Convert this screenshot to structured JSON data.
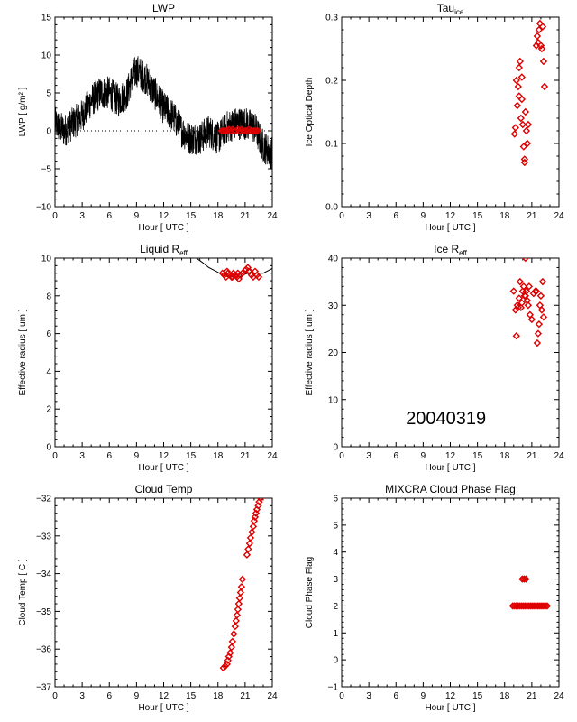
{
  "colors": {
    "marker": "#dd0000",
    "line": "#000000",
    "axis": "#000000"
  },
  "chart_data": [
    {
      "id": "lwp",
      "type": "line",
      "title": "LWP",
      "xlabel": "Hour [ UTC ]",
      "ylabel": "LWP [ g/m² ]",
      "xlim": [
        0,
        24
      ],
      "ylim": [
        -10,
        15
      ],
      "xticks": [
        0,
        3,
        6,
        9,
        12,
        15,
        18,
        21,
        24
      ],
      "yticks": [
        -10,
        -5,
        0,
        5,
        10,
        15
      ],
      "zero_line_dotted": true,
      "series": [
        {
          "kind": "noisy-line",
          "anchors": [
            [
              0,
              1
            ],
            [
              1,
              0
            ],
            [
              2,
              1
            ],
            [
              3,
              2
            ],
            [
              4,
              4
            ],
            [
              5,
              5
            ],
            [
              6,
              5
            ],
            [
              7,
              4
            ],
            [
              8,
              5
            ],
            [
              8.5,
              7
            ],
            [
              9,
              8
            ],
            [
              10,
              7
            ],
            [
              11,
              5
            ],
            [
              12,
              3
            ],
            [
              13,
              2
            ],
            [
              14,
              0
            ],
            [
              15,
              -1
            ],
            [
              16,
              -1
            ],
            [
              17,
              0
            ],
            [
              18,
              -1
            ],
            [
              19,
              0.5
            ],
            [
              20,
              1
            ],
            [
              21,
              1
            ],
            [
              22,
              0.5
            ],
            [
              23,
              -2
            ],
            [
              24,
              -3
            ]
          ],
          "noise_amplitude": 2.2
        },
        {
          "kind": "markers",
          "x": [
            18.4,
            18.6,
            18.8,
            19.0,
            19.2,
            19.4,
            19.6,
            19.8,
            20.0,
            20.2,
            20.4,
            20.6,
            20.8,
            21.0,
            21.2,
            21.4,
            21.6,
            21.8,
            22.0,
            22.2,
            22.4
          ],
          "y": [
            0,
            0,
            0,
            0,
            0.2,
            0,
            0.2,
            0,
            0,
            0.2,
            0,
            0.2,
            0,
            0,
            0,
            0.2,
            0,
            0,
            0,
            0,
            0
          ]
        }
      ]
    },
    {
      "id": "tau-ice",
      "type": "scatter",
      "title": "Tau",
      "title_sub": "ice",
      "xlabel": "Hour [ UTC ]",
      "ylabel": "Ice Optical Depth",
      "xlim": [
        0,
        24
      ],
      "ylim": [
        0,
        0.3
      ],
      "xticks": [
        0,
        3,
        6,
        9,
        12,
        15,
        18,
        21,
        24
      ],
      "yticks": [
        0.0,
        0.1,
        0.2,
        0.3
      ],
      "ytick_labels": [
        "0.0",
        "0.1",
        "0.2",
        "0.3"
      ],
      "series": [
        {
          "kind": "markers",
          "x": [
            19.1,
            19.2,
            19.4,
            19.5,
            19.6,
            19.7,
            19.8,
            19.9,
            20.0,
            20.1,
            20.2,
            20.3,
            20.4,
            20.5,
            20.6,
            19.3,
            19.6,
            19.9,
            20.2,
            21.5,
            21.7,
            21.8,
            21.9,
            22.0,
            22.2,
            22.3,
            22.4,
            21.6,
            22.1
          ],
          "y": [
            0.115,
            0.125,
            0.16,
            0.19,
            0.22,
            0.23,
            0.14,
            0.17,
            0.13,
            0.095,
            0.07,
            0.15,
            0.12,
            0.1,
            0.13,
            0.2,
            0.175,
            0.205,
            0.075,
            0.255,
            0.26,
            0.28,
            0.29,
            0.255,
            0.285,
            0.23,
            0.19,
            0.27,
            0.25
          ]
        }
      ]
    },
    {
      "id": "liquid-reff",
      "type": "scatter",
      "title": "Liquid R",
      "title_sub": "eff",
      "xlabel": "Hour [ UTC ]",
      "ylabel": "Effective radius [ um ]",
      "xlim": [
        0,
        24
      ],
      "ylim": [
        0,
        10
      ],
      "xticks": [
        0,
        3,
        6,
        9,
        12,
        15,
        18,
        21,
        24
      ],
      "yticks": [
        0,
        2,
        4,
        6,
        8,
        10
      ],
      "series": [
        {
          "kind": "line",
          "x": [
            15.6,
            16.2,
            17.0,
            17.8,
            18.5,
            19.2,
            20.0,
            20.6,
            21.0,
            21.6,
            22.2,
            23.0,
            23.6,
            24.0
          ],
          "y": [
            10.0,
            9.8,
            9.5,
            9.3,
            9.1,
            9.0,
            9.0,
            9.05,
            9.15,
            9.25,
            9.2,
            9.2,
            9.35,
            9.45
          ]
        },
        {
          "kind": "markers",
          "x": [
            18.5,
            18.7,
            18.9,
            19.1,
            19.3,
            19.5,
            19.7,
            19.9,
            20.1,
            20.3,
            20.5,
            20.7,
            21.1,
            21.3,
            21.5,
            21.7,
            21.9,
            22.1,
            22.3,
            22.5,
            19.0,
            19.6,
            20.2,
            21.4
          ],
          "y": [
            9.2,
            9.1,
            9.0,
            9.2,
            9.1,
            9.0,
            9.2,
            9.1,
            9.0,
            8.9,
            9.1,
            9.2,
            9.4,
            9.5,
            9.3,
            9.1,
            9.0,
            9.3,
            9.1,
            9.0,
            9.3,
            9.0,
            9.2,
            9.3
          ]
        }
      ]
    },
    {
      "id": "ice-reff",
      "type": "scatter",
      "title": "Ice R",
      "title_sub": "eff",
      "xlabel": "Hour [ UTC ]",
      "ylabel": "Effective radius [ um ]",
      "xlim": [
        0,
        24
      ],
      "ylim": [
        0,
        40
      ],
      "xticks": [
        0,
        3,
        6,
        9,
        12,
        15,
        18,
        21,
        24
      ],
      "yticks": [
        0,
        10,
        20,
        30,
        40
      ],
      "annotation": "20040319",
      "series": [
        {
          "kind": "markers",
          "x": [
            19.0,
            19.2,
            19.3,
            19.4,
            19.6,
            19.7,
            19.8,
            19.9,
            20.0,
            20.1,
            20.2,
            20.3,
            20.4,
            20.5,
            20.6,
            20.7,
            20.8,
            21.0,
            21.2,
            21.4,
            21.5,
            21.6,
            21.7,
            21.8,
            21.9,
            22.0,
            22.1,
            22.2,
            22.3,
            19.5,
            20.3
          ],
          "y": [
            33,
            29,
            23.5,
            30,
            31.5,
            35,
            29.5,
            30.5,
            33,
            34,
            32,
            40,
            33,
            31,
            30,
            34,
            28,
            27,
            32.5,
            33,
            33,
            22,
            24,
            26,
            30,
            32,
            29,
            35,
            27.5,
            29.5,
            32
          ]
        }
      ]
    },
    {
      "id": "cloud-temp",
      "type": "scatter",
      "title": "Cloud Temp",
      "xlabel": "Hour [ UTC ]",
      "ylabel": "Cloud Temp [ C ]",
      "xlim": [
        0,
        24
      ],
      "ylim": [
        -37,
        -32
      ],
      "xticks": [
        0,
        3,
        6,
        9,
        12,
        15,
        18,
        21,
        24
      ],
      "yticks": [
        -37,
        -36,
        -35,
        -34,
        -33,
        -32
      ],
      "series": [
        {
          "kind": "markers",
          "x": [
            18.6,
            18.8,
            19.0,
            19.1,
            19.2,
            19.35,
            19.5,
            19.6,
            19.75,
            19.9,
            20.0,
            20.1,
            20.2,
            20.3,
            20.4,
            20.5,
            20.6,
            20.7,
            21.2,
            21.35,
            21.5,
            21.6,
            21.75,
            21.9,
            22.0,
            22.1,
            22.2,
            22.3,
            22.45,
            22.55,
            22.7
          ],
          "y": [
            -36.5,
            -36.45,
            -36.4,
            -36.3,
            -36.2,
            -36.1,
            -35.95,
            -35.8,
            -35.6,
            -35.4,
            -35.25,
            -35.1,
            -34.95,
            -34.8,
            -34.65,
            -34.5,
            -34.35,
            -34.15,
            -33.5,
            -33.35,
            -33.2,
            -33.05,
            -32.9,
            -32.75,
            -32.6,
            -32.5,
            -32.4,
            -32.3,
            -32.2,
            -32.1,
            -32.0
          ]
        }
      ]
    },
    {
      "id": "cloud-phase",
      "type": "scatter",
      "title": "MIXCRA Cloud Phase Flag",
      "xlabel": "Hour [ UTC ]",
      "ylabel": "Cloud Phase Flag",
      "xlim": [
        0,
        24
      ],
      "ylim": [
        -1,
        6
      ],
      "xticks": [
        0,
        3,
        6,
        9,
        12,
        15,
        18,
        21,
        24
      ],
      "yticks": [
        -1,
        0,
        1,
        2,
        3,
        4,
        5,
        6
      ],
      "series": [
        {
          "kind": "markers",
          "x": [
            18.9,
            19.1,
            19.3,
            19.5,
            19.7,
            19.9,
            20.1,
            20.3,
            20.5,
            20.7,
            20.9,
            21.1,
            21.3,
            21.5,
            21.7,
            21.9,
            22.1,
            22.3,
            22.5,
            22.7,
            19.95,
            20.15,
            20.35
          ],
          "y": [
            2,
            2,
            2,
            2,
            2,
            2,
            2,
            2,
            2,
            2,
            2,
            2,
            2,
            2,
            2,
            2,
            2,
            2,
            2,
            2,
            3,
            3,
            3
          ]
        }
      ]
    }
  ]
}
